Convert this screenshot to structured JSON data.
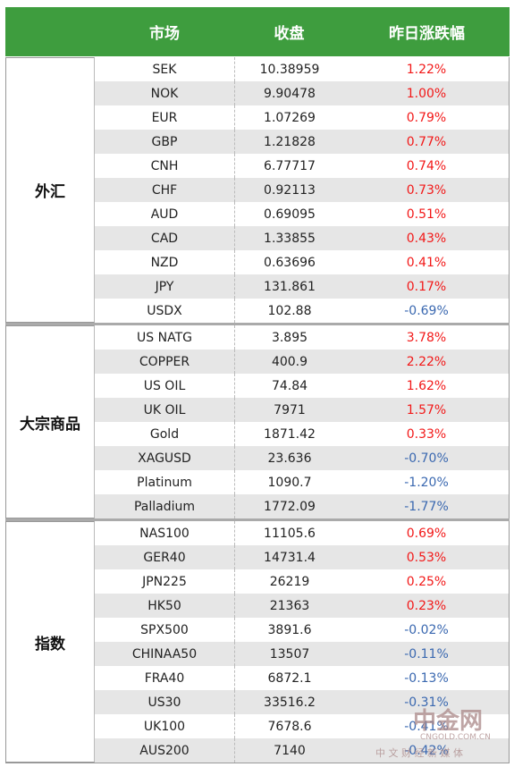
{
  "table": {
    "header": [
      "市场",
      "收盘",
      "昨日涨跌幅"
    ],
    "groups": [
      {
        "label": "外汇",
        "rows": [
          [
            "SEK",
            "10.38959",
            "1.22%"
          ],
          [
            "NOK",
            "9.90478",
            "1.00%"
          ],
          [
            "EUR",
            "1.07269",
            "0.79%"
          ],
          [
            "GBP",
            "1.21828",
            "0.77%"
          ],
          [
            "CNH",
            "6.77717",
            "0.74%"
          ],
          [
            "CHF",
            "0.92113",
            "0.73%"
          ],
          [
            "AUD",
            "0.69095",
            "0.51%"
          ],
          [
            "CAD",
            "1.33855",
            "0.43%"
          ],
          [
            "NZD",
            "0.63696",
            "0.41%"
          ],
          [
            "JPY",
            "131.861",
            "0.17%"
          ],
          [
            "USDX",
            "102.88",
            "-0.69%"
          ]
        ]
      },
      {
        "label": "大宗商品",
        "rows": [
          [
            "US NATG",
            "3.895",
            "3.78%"
          ],
          [
            "COPPER",
            "400.9",
            "2.22%"
          ],
          [
            "US OIL",
            "74.84",
            "1.62%"
          ],
          [
            "UK OIL",
            "7971",
            "1.57%"
          ],
          [
            "Gold",
            "1871.42",
            "0.33%"
          ],
          [
            "XAGUSD",
            "23.636",
            "-0.70%"
          ],
          [
            "Platinum",
            "1090.7",
            "-1.20%"
          ],
          [
            "Palladium",
            "1772.09",
            "-1.77%"
          ]
        ]
      },
      {
        "label": "指数",
        "rows": [
          [
            "NAS100",
            "11105.6",
            "0.69%"
          ],
          [
            "GER40",
            "14731.4",
            "0.53%"
          ],
          [
            "JPN225",
            "26219",
            "0.25%"
          ],
          [
            "HK50",
            "21363",
            "0.23%"
          ],
          [
            "SPX500",
            "3891.6",
            "-0.02%"
          ],
          [
            "CHINAA50",
            "13507",
            "-0.11%"
          ],
          [
            "FRA40",
            "6872.1",
            "-0.13%"
          ],
          [
            "US30",
            "33516.2",
            "-0.31%"
          ],
          [
            "UK100",
            "7678.6",
            "-0.41%"
          ],
          [
            "AUS200",
            "7140",
            "-0.42%"
          ]
        ]
      }
    ]
  },
  "watermark": {
    "logo": "中金网",
    "domain": "CNGOLD.COM.CN",
    "slogan": "中 文 财 经 新 媒 体"
  }
}
